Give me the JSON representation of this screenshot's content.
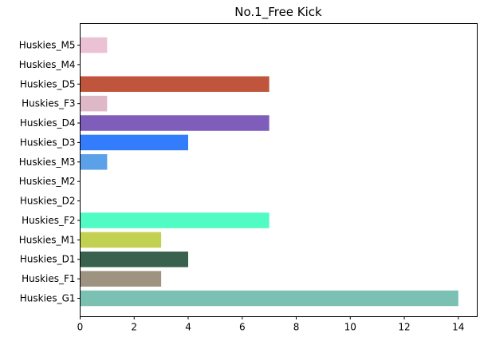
{
  "chart_data": {
    "type": "bar",
    "orientation": "horizontal",
    "title": "No.1_Free Kick",
    "xlabel": "",
    "ylabel": "",
    "xlim": [
      0,
      14.7
    ],
    "xticks": [
      0,
      2,
      4,
      6,
      8,
      10,
      12,
      14
    ],
    "grid": false,
    "categories": [
      "Huskies_G1",
      "Huskies_F1",
      "Huskies_D1",
      "Huskies_M1",
      "Huskies_F2",
      "Huskies_D2",
      "Huskies_M2",
      "Huskies_M3",
      "Huskies_D3",
      "Huskies_D4",
      "Huskies_F3",
      "Huskies_D5",
      "Huskies_M4",
      "Huskies_M5"
    ],
    "values": [
      14,
      3,
      4,
      3,
      7,
      0,
      0,
      1,
      4,
      7,
      1,
      7,
      0,
      1
    ],
    "colors": [
      "#7ac0b3",
      "#9e9381",
      "#3a604e",
      "#c3d152",
      "#50fcc4",
      "#ffffff",
      "#ffffff",
      "#5ba1e9",
      "#337cfb",
      "#7f5ebb",
      "#dfb8c8",
      "#c0553e",
      "#ffffff",
      "#ebc2d3"
    ]
  }
}
